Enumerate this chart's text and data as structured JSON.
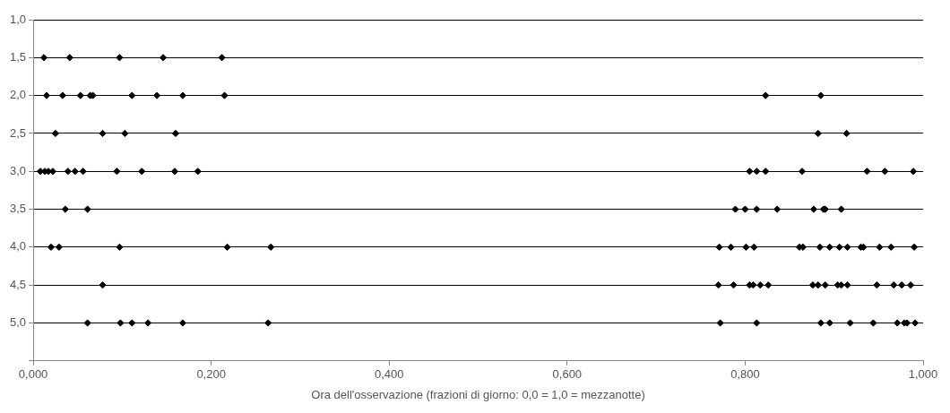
{
  "chart_data": {
    "type": "scatter",
    "xlabel": "Ora dell'osservazione (frazioni di giorno: 0,0 = 1,0 = mezzanotte)",
    "xlim": [
      0,
      1
    ],
    "xticks": [
      {
        "value": 0,
        "label": "0,000"
      },
      {
        "value": 0.2,
        "label": "0,200"
      },
      {
        "value": 0.4,
        "label": "0,400"
      },
      {
        "value": 0.6,
        "label": "0,600"
      },
      {
        "value": 0.8,
        "label": "0,800"
      },
      {
        "value": 1,
        "label": "1,000"
      }
    ],
    "ylim": [
      5.5,
      1.0
    ],
    "yticks": [
      {
        "value": 1,
        "label": "1,0"
      },
      {
        "value": 1.5,
        "label": "1,5"
      },
      {
        "value": 2,
        "label": "2,0"
      },
      {
        "value": 2.5,
        "label": "2,5"
      },
      {
        "value": 3,
        "label": "3,0"
      },
      {
        "value": 3.5,
        "label": "3,5"
      },
      {
        "value": 4,
        "label": "4,0"
      },
      {
        "value": 4.5,
        "label": "4,5"
      },
      {
        "value": 5,
        "label": "5,0"
      },
      {
        "value": 5.5,
        "label": null
      }
    ],
    "grid": "y",
    "legend": false,
    "marker": "diamond",
    "series": [
      {
        "color": "#000000",
        "x": [
          0.012,
          0.041,
          0.097,
          0.146,
          0.212,
          0.015,
          0.033,
          0.053,
          0.064,
          0.067,
          0.111,
          0.139,
          0.168,
          0.215,
          0.823,
          0.885,
          0.025,
          0.078,
          0.103,
          0.16,
          0.882,
          0.914,
          0.008,
          0.013,
          0.017,
          0.022,
          0.039,
          0.047,
          0.056,
          0.094,
          0.122,
          0.159,
          0.185,
          0.805,
          0.813,
          0.823,
          0.864,
          0.937,
          0.957,
          0.989,
          0.036,
          0.061,
          0.789,
          0.8,
          0.813,
          0.836,
          0.877,
          0.888,
          0.89,
          0.908,
          0.02,
          0.029,
          0.097,
          0.218,
          0.267,
          0.771,
          0.784,
          0.801,
          0.81,
          0.861,
          0.865,
          0.884,
          0.895,
          0.906,
          0.915,
          0.93,
          0.933,
          0.951,
          0.964,
          0.99,
          0.078,
          0.77,
          0.787,
          0.805,
          0.809,
          0.817,
          0.826,
          0.876,
          0.882,
          0.89,
          0.904,
          0.908,
          0.915,
          0.948,
          0.967,
          0.976,
          0.986,
          0.061,
          0.098,
          0.111,
          0.129,
          0.168,
          0.264,
          0.772,
          0.813,
          0.885,
          0.895,
          0.918,
          0.944,
          0.971,
          0.979,
          0.982,
          0.991
        ],
        "values": [
          1.5,
          1.5,
          1.5,
          1.5,
          1.5,
          2,
          2,
          2,
          2,
          2,
          2,
          2,
          2,
          2,
          2,
          2,
          2.5,
          2.5,
          2.5,
          2.5,
          2.5,
          2.5,
          3,
          3,
          3,
          3,
          3,
          3,
          3,
          3,
          3,
          3,
          3,
          3,
          3,
          3,
          3,
          3,
          3,
          3,
          3.5,
          3.5,
          3.5,
          3.5,
          3.5,
          3.5,
          3.5,
          3.5,
          3.5,
          3.5,
          4,
          4,
          4,
          4,
          4,
          4,
          4,
          4,
          4,
          4,
          4,
          4,
          4,
          4,
          4,
          4,
          4,
          4,
          4,
          4,
          4.5,
          4.5,
          4.5,
          4.5,
          4.5,
          4.5,
          4.5,
          4.5,
          4.5,
          4.5,
          4.5,
          4.5,
          4.5,
          4.5,
          4.5,
          4.5,
          4.5,
          5,
          5,
          5,
          5,
          5,
          5,
          5,
          5,
          5,
          5,
          5,
          5,
          5,
          5,
          5,
          5
        ]
      }
    ]
  }
}
